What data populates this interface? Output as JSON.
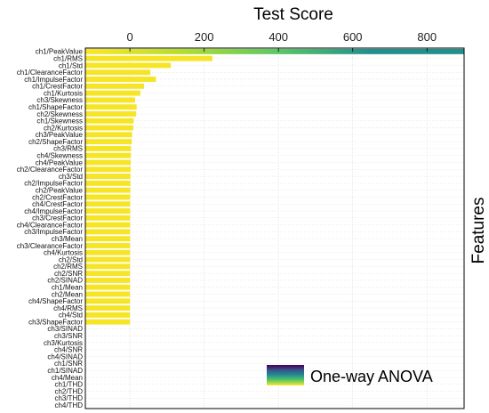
{
  "chart_data": {
    "type": "bar",
    "orientation": "horizontal",
    "xlabel": "Test Score",
    "ylabel": "Features",
    "legend": {
      "label": "One-way ANOVA",
      "placement": "bottom-right"
    },
    "xlim": [
      -120,
      900
    ],
    "xticks": [
      0,
      200,
      400,
      600,
      800
    ],
    "grid": true,
    "colormap": [
      "#440154",
      "#3b528b",
      "#21908d",
      "#5dc863",
      "#fde725"
    ],
    "categories": [
      "ch1/PeakValue",
      "ch1/RMS",
      "ch1/Std",
      "ch1/ClearanceFactor",
      "ch1/ImpulseFactor",
      "ch1/CrestFactor",
      "ch1/Kurtosis",
      "ch3/Skewness",
      "ch1/ShapeFactor",
      "ch2/Skewness",
      "ch1/Skewness",
      "ch2/Kurtosis",
      "ch3/PeakValue",
      "ch2/ShapeFactor",
      "ch3/RMS",
      "ch4/Skewness",
      "ch4/PeakValue",
      "ch2/ClearanceFactor",
      "ch3/Std",
      "ch2/ImpulseFactor",
      "ch2/PeakValue",
      "ch2/CrestFactor",
      "ch4/CrestFactor",
      "ch4/ImpulseFactor",
      "ch3/CrestFactor",
      "ch4/ClearanceFactor",
      "ch3/ImpulseFactor",
      "ch3/Mean",
      "ch3/ClearanceFactor",
      "ch4/Kurtosis",
      "ch2/Std",
      "ch2/RMS",
      "ch2/SNR",
      "ch2/SINAD",
      "ch1/Mean",
      "ch2/Mean",
      "ch4/ShapeFactor",
      "ch4/RMS",
      "ch4/Std",
      "ch3/ShapeFactor",
      "ch3/SINAD",
      "ch3/SNR",
      "ch3/Kurtosis",
      "ch4/SNR",
      "ch4/SINAD",
      "ch1/SNR",
      "ch1/SINAD",
      "ch4/Mean",
      "ch1/THD",
      "ch2/THD",
      "ch3/THD",
      "ch4/THD"
    ],
    "values": [
      900,
      222,
      110,
      55,
      70,
      38,
      28,
      14,
      18,
      17,
      10,
      9,
      6,
      5,
      3,
      2.5,
      2,
      2,
      1.5,
      1.5,
      1.2,
      1,
      0.8,
      0.8,
      0.6,
      0.5,
      0.5,
      0.4,
      0.4,
      0.3,
      0.3,
      0.3,
      0.2,
      0.2,
      0.2,
      0.1,
      0.1,
      0.1,
      0.1,
      0.1,
      0,
      0,
      0,
      0,
      0,
      0,
      0,
      0,
      0,
      0,
      0,
      0
    ]
  }
}
